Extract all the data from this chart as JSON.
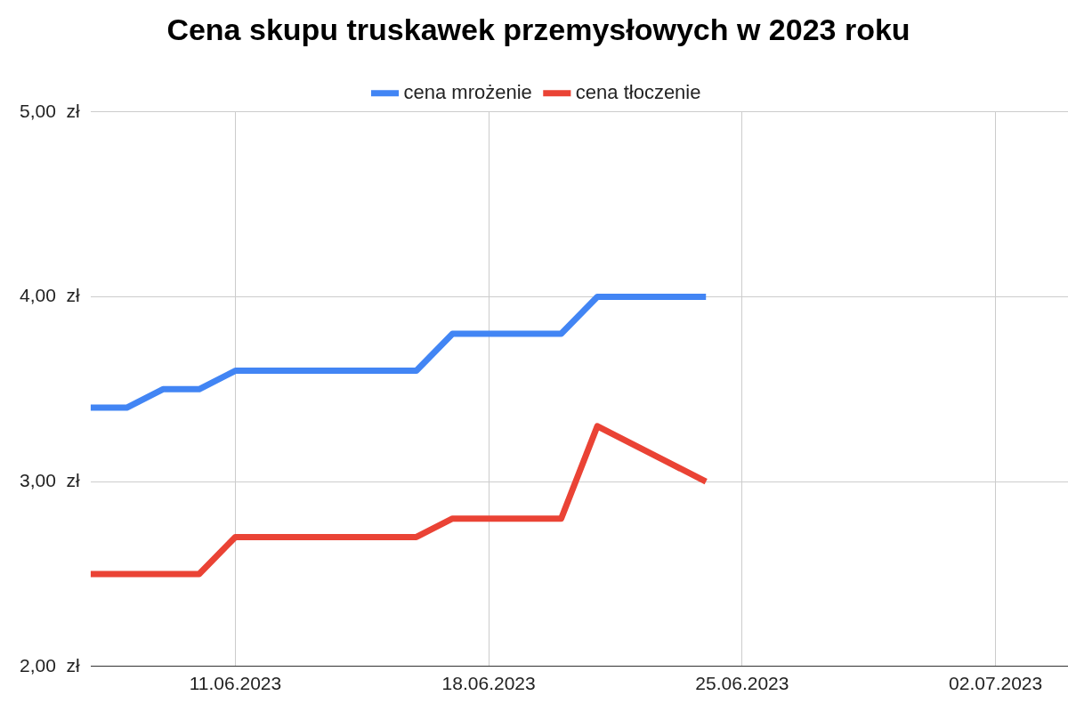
{
  "chart_data": {
    "type": "line",
    "title": "Cena skupu truskawek przemysłowych w 2023 roku",
    "x": [
      "2023-06-07",
      "2023-06-08",
      "2023-06-09",
      "2023-06-10",
      "2023-06-11",
      "2023-06-12",
      "2023-06-13",
      "2023-06-14",
      "2023-06-15",
      "2023-06-16",
      "2023-06-17",
      "2023-06-18",
      "2023-06-19",
      "2023-06-20",
      "2023-06-21",
      "2023-06-22",
      "2023-06-23",
      "2023-06-24"
    ],
    "series": [
      {
        "name": "cena mrożenie",
        "color": "#4285f4",
        "values": [
          3.4,
          3.4,
          3.5,
          3.5,
          3.6,
          3.6,
          3.6,
          3.6,
          3.6,
          3.6,
          3.8,
          3.8,
          3.8,
          3.8,
          4.0,
          4.0,
          4.0,
          4.0
        ]
      },
      {
        "name": "cena tłoczenie",
        "color": "#ea4335",
        "values": [
          2.5,
          2.5,
          2.5,
          2.5,
          2.7,
          2.7,
          2.7,
          2.7,
          2.7,
          2.7,
          2.8,
          2.8,
          2.8,
          2.8,
          3.3,
          3.2,
          3.1,
          3.0
        ]
      }
    ],
    "xlim": [
      "2023-06-07",
      "2023-07-04"
    ],
    "xticks": [
      {
        "value": "2023-06-11",
        "label": "11.06.2023"
      },
      {
        "value": "2023-06-18",
        "label": "18.06.2023"
      },
      {
        "value": "2023-06-25",
        "label": "25.06.2023"
      },
      {
        "value": "2023-07-02",
        "label": "02.07.2023"
      }
    ],
    "ylim": [
      2,
      5
    ],
    "yticks": [
      {
        "value": 2,
        "label": "2,00  zł"
      },
      {
        "value": 3,
        "label": "3,00  zł"
      },
      {
        "value": 4,
        "label": "4,00  zł"
      },
      {
        "value": 5,
        "label": "5,00  zł"
      }
    ],
    "grid": true,
    "legend": "top",
    "marker": "none",
    "line_style": "solid"
  }
}
